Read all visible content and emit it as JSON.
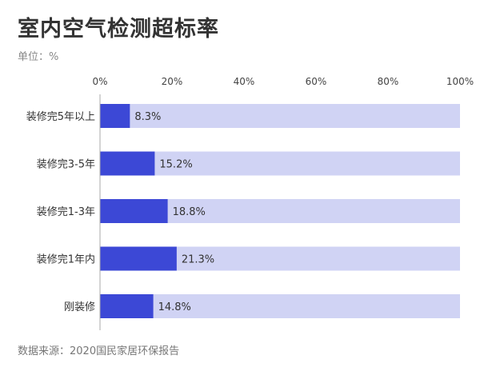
{
  "chart_data": {
    "type": "bar",
    "orientation": "horizontal",
    "title": "室内空气检测超标率",
    "unit_label": "单位：%",
    "source": "数据来源：2020国民家居环保报告",
    "categories": [
      "装修完5年以上",
      "装修完3-5年",
      "装修完1-3年",
      "装修完1年内",
      "刚装修"
    ],
    "values": [
      8.3,
      15.2,
      18.8,
      21.3,
      14.8
    ],
    "value_labels": [
      "8.3%",
      "15.2%",
      "18.8%",
      "21.3%",
      "14.8%"
    ],
    "xlim": [
      0,
      100
    ],
    "xticks": [
      0,
      20,
      40,
      60,
      80,
      100
    ],
    "xtick_labels": [
      "0%",
      "20%",
      "40%",
      "60%",
      "80%",
      "100%"
    ],
    "axis_position": "top",
    "colors": {
      "value": "#3c48d6",
      "remainder": "#d0d3f4",
      "axis": "#aaaaaa"
    }
  }
}
